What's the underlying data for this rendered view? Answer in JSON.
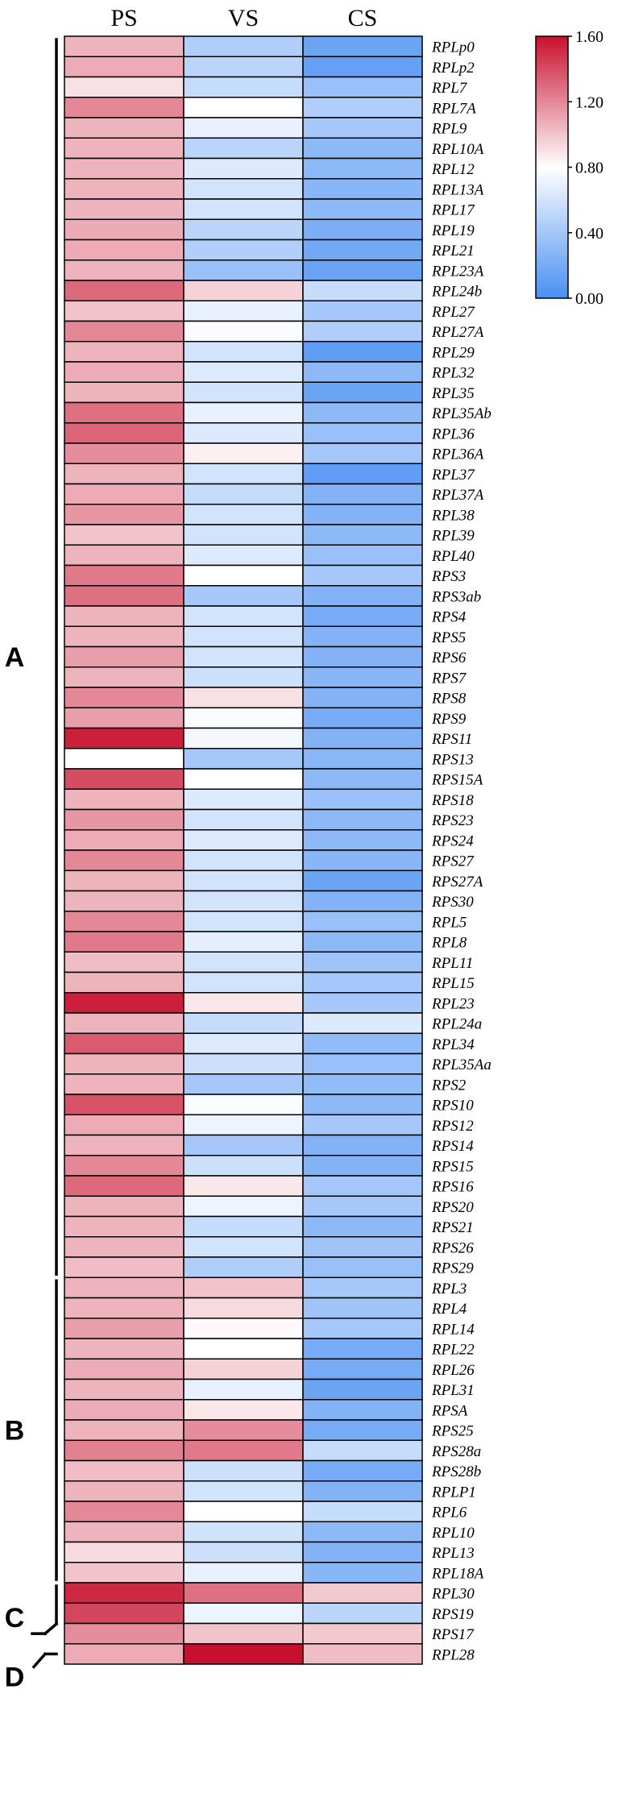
{
  "chart_data": {
    "type": "heatmap",
    "columns": [
      "PS",
      "VS",
      "CS"
    ],
    "rows": [
      "RPLp0",
      "RPLp2",
      "RPL7",
      "RPL7A",
      "RPL9",
      "RPL10A",
      "RPL12",
      "RPL13A",
      "RPL17",
      "RPL19",
      "RPL21",
      "RPL23A",
      "RPL24b",
      "RPL27",
      "RPL27A",
      "RPL29",
      "RPL32",
      "RPL35",
      "RPL35Ab",
      "RPL36",
      "RPL36A",
      "RPL37",
      "RPL37A",
      "RPL38",
      "RPL39",
      "RPL40",
      "RPS3",
      "RPS3ab",
      "RPS4",
      "RPS5",
      "RPS6",
      "RPS7",
      "RPS8",
      "RPS9",
      "RPS11",
      "RPS13",
      "RPS15A",
      "RPS18",
      "RPS23",
      "RPS24",
      "RPS27",
      "RPS27A",
      "RPS30",
      "RPL5",
      "RPL8",
      "RPL11",
      "RPL15",
      "RPL23",
      "RPL24a",
      "RPL34",
      "RPL35Aa",
      "RPS2",
      "RPS10",
      "RPS12",
      "RPS14",
      "RPS15",
      "RPS16",
      "RPS20",
      "RPS21",
      "RPS26",
      "RPS29",
      "RPL3",
      "RPL4",
      "RPL14",
      "RPL22",
      "RPL26",
      "RPL31",
      "RPSA",
      "RPS25",
      "RPS28a",
      "RPS28b",
      "RPLP1",
      "RPL6",
      "RPL10",
      "RPL13",
      "RPL18A",
      "RPL30",
      "RPS19",
      "RPS17",
      "RPL28"
    ],
    "values": [
      [
        1.05,
        0.45,
        0.15
      ],
      [
        1.08,
        0.5,
        0.12
      ],
      [
        0.9,
        0.55,
        0.35
      ],
      [
        1.2,
        0.8,
        0.45
      ],
      [
        1.05,
        0.7,
        0.4
      ],
      [
        1.05,
        0.5,
        0.3
      ],
      [
        1.05,
        0.65,
        0.3
      ],
      [
        1.05,
        0.6,
        0.28
      ],
      [
        1.05,
        0.6,
        0.3
      ],
      [
        1.08,
        0.5,
        0.22
      ],
      [
        1.08,
        0.45,
        0.18
      ],
      [
        1.05,
        0.35,
        0.15
      ],
      [
        1.3,
        0.95,
        0.55
      ],
      [
        1.0,
        0.7,
        0.4
      ],
      [
        1.2,
        0.78,
        0.45
      ],
      [
        1.05,
        0.6,
        0.1
      ],
      [
        1.08,
        0.65,
        0.3
      ],
      [
        1.05,
        0.6,
        0.15
      ],
      [
        1.28,
        0.7,
        0.3
      ],
      [
        1.32,
        0.65,
        0.35
      ],
      [
        1.18,
        0.85,
        0.4
      ],
      [
        1.05,
        0.6,
        0.1
      ],
      [
        1.08,
        0.55,
        0.25
      ],
      [
        1.15,
        0.6,
        0.25
      ],
      [
        1.0,
        0.6,
        0.3
      ],
      [
        1.05,
        0.65,
        0.35
      ],
      [
        1.25,
        0.8,
        0.4
      ],
      [
        1.28,
        0.4,
        0.25
      ],
      [
        1.05,
        0.6,
        0.2
      ],
      [
        1.05,
        0.6,
        0.25
      ],
      [
        1.12,
        0.6,
        0.25
      ],
      [
        1.05,
        0.58,
        0.28
      ],
      [
        1.2,
        0.9,
        0.25
      ],
      [
        1.12,
        0.78,
        0.2
      ],
      [
        1.55,
        0.75,
        0.25
      ],
      [
        0.8,
        0.4,
        0.28
      ],
      [
        1.4,
        0.8,
        0.3
      ],
      [
        1.05,
        0.65,
        0.35
      ],
      [
        1.15,
        0.6,
        0.3
      ],
      [
        1.08,
        0.65,
        0.3
      ],
      [
        1.2,
        0.6,
        0.28
      ],
      [
        1.05,
        0.6,
        0.15
      ],
      [
        1.05,
        0.6,
        0.25
      ],
      [
        1.2,
        0.6,
        0.35
      ],
      [
        1.25,
        0.68,
        0.3
      ],
      [
        1.02,
        0.6,
        0.38
      ],
      [
        1.05,
        0.6,
        0.4
      ],
      [
        1.55,
        0.88,
        0.4
      ],
      [
        1.05,
        0.55,
        0.65
      ],
      [
        1.35,
        0.65,
        0.32
      ],
      [
        1.05,
        0.58,
        0.35
      ],
      [
        1.05,
        0.4,
        0.32
      ],
      [
        1.38,
        0.78,
        0.3
      ],
      [
        1.08,
        0.72,
        0.4
      ],
      [
        1.05,
        0.4,
        0.25
      ],
      [
        1.2,
        0.58,
        0.25
      ],
      [
        1.3,
        0.88,
        0.4
      ],
      [
        1.05,
        0.72,
        0.4
      ],
      [
        1.05,
        0.55,
        0.3
      ],
      [
        1.05,
        0.6,
        0.38
      ],
      [
        1.02,
        0.45,
        0.35
      ],
      [
        1.05,
        1.0,
        0.4
      ],
      [
        1.05,
        0.92,
        0.38
      ],
      [
        1.12,
        0.82,
        0.4
      ],
      [
        1.05,
        0.8,
        0.2
      ],
      [
        1.08,
        0.95,
        0.2
      ],
      [
        1.05,
        0.7,
        0.15
      ],
      [
        1.08,
        0.88,
        0.25
      ],
      [
        1.05,
        1.18,
        0.2
      ],
      [
        1.22,
        1.25,
        0.55
      ],
      [
        1.02,
        0.58,
        0.2
      ],
      [
        1.05,
        0.6,
        0.25
      ],
      [
        1.2,
        0.8,
        0.55
      ],
      [
        1.05,
        0.6,
        0.3
      ],
      [
        0.92,
        0.58,
        0.25
      ],
      [
        1.0,
        0.7,
        0.28
      ],
      [
        1.52,
        1.28,
        0.98
      ],
      [
        1.42,
        0.72,
        0.5
      ],
      [
        1.18,
        1.0,
        0.98
      ],
      [
        1.08,
        1.62,
        1.02
      ]
    ],
    "colorbar": {
      "min": 0.0,
      "max": 1.6,
      "ticks": [
        "0.00",
        "0.40",
        "0.80",
        "1.20",
        "1.60"
      ],
      "colors": [
        "#4a8ff2",
        "#ffffff",
        "#c8102e"
      ]
    },
    "groups": [
      {
        "label": "A",
        "from": "RPLp0",
        "to": "RPS29"
      },
      {
        "label": "B",
        "from": "RPL3",
        "to": "RPL18A"
      },
      {
        "label": "C",
        "from": "RPL30",
        "to": "RPS17"
      },
      {
        "label": "D",
        "from": "RPL28",
        "to": "RPL28"
      }
    ]
  }
}
